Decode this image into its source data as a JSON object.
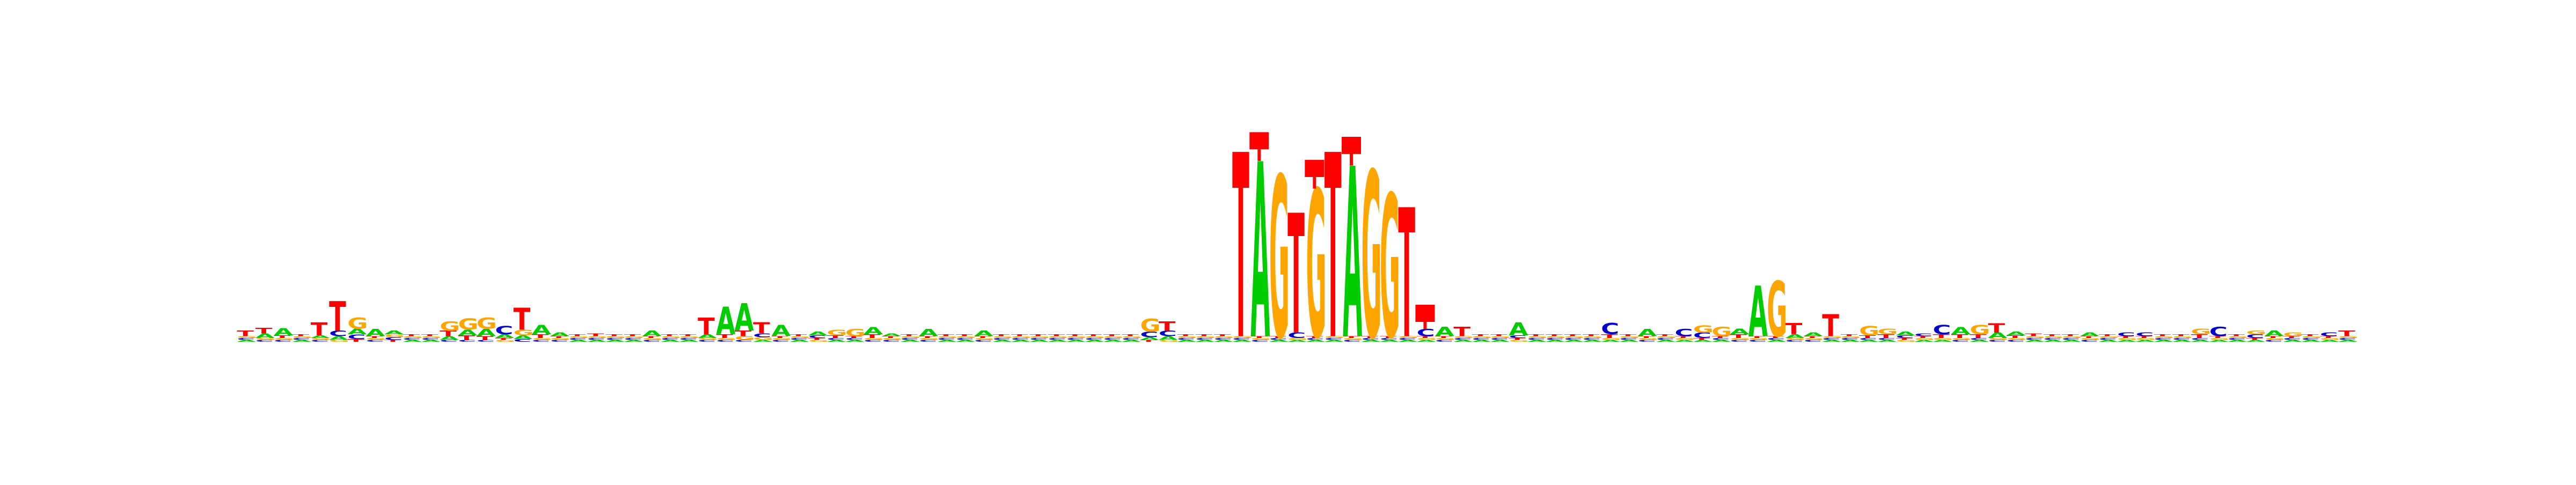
{
  "chart_data": {
    "type": "sequence-logo",
    "alphabet": [
      "A",
      "C",
      "G",
      "T"
    ],
    "colors": {
      "A": "#00cc00",
      "C": "#0000cc",
      "G": "#ffa500",
      "T": "#ff0000"
    },
    "y_range_bits": [
      0,
      2.0
    ],
    "error_bar_color": "#ff0000",
    "positions": [
      {
        "A": 0.02,
        "C": 0.02,
        "G": 0.02,
        "T": 0.06
      },
      {
        "A": 0.05,
        "C": 0.02,
        "G": 0.02,
        "T": 0.06
      },
      {
        "A": 0.08,
        "C": 0.02,
        "G": 0.02,
        "T": 0.03
      },
      {
        "A": 0.02,
        "C": 0.02,
        "G": 0.02,
        "T": 0.02
      },
      {
        "A": 0.03,
        "C": 0.02,
        "G": 0.02,
        "T": 0.14
      },
      {
        "A": 0.04,
        "C": 0.06,
        "G": 0.02,
        "T": 0.32
      },
      {
        "A": 0.06,
        "C": 0.05,
        "G": 0.12,
        "T": 0.03
      },
      {
        "A": 0.08,
        "C": 0.02,
        "G": 0.02,
        "T": 0.02
      },
      {
        "A": 0.04,
        "C": 0.03,
        "G": 0.03,
        "T": 0.02
      },
      {
        "A": 0.02,
        "C": 0.02,
        "G": 0.02,
        "T": 0.02
      },
      {
        "A": 0.02,
        "C": 0.02,
        "G": 0.02,
        "T": 0.02
      },
      {
        "A": 0.04,
        "C": 0.02,
        "G": 0.1,
        "T": 0.06
      },
      {
        "A": 0.06,
        "C": 0.02,
        "G": 0.12,
        "T": 0.05
      },
      {
        "A": 0.08,
        "C": 0.02,
        "G": 0.12,
        "T": 0.04
      },
      {
        "A": 0.04,
        "C": 0.09,
        "G": 0.02,
        "T": 0.02
      },
      {
        "A": 0.04,
        "C": 0.03,
        "G": 0.06,
        "T": 0.24
      },
      {
        "A": 0.1,
        "C": 0.02,
        "G": 0.02,
        "T": 0.04
      },
      {
        "A": 0.04,
        "C": 0.02,
        "G": 0.02,
        "T": 0.02
      },
      {
        "A": 0.02,
        "C": 0.02,
        "G": 0.02,
        "T": 0.02
      },
      {
        "A": 0.02,
        "C": 0.02,
        "G": 0.02,
        "T": 0.03
      },
      {
        "A": 0.02,
        "C": 0.02,
        "G": 0.02,
        "T": 0.02
      },
      {
        "A": 0.02,
        "C": 0.02,
        "G": 0.02,
        "T": 0.02
      },
      {
        "A": 0.06,
        "C": 0.02,
        "G": 0.02,
        "T": 0.02
      },
      {
        "A": 0.02,
        "C": 0.02,
        "G": 0.02,
        "T": 0.02
      },
      {
        "A": 0.02,
        "C": 0.02,
        "G": 0.02,
        "T": 0.02
      },
      {
        "A": 0.04,
        "C": 0.02,
        "G": 0.02,
        "T": 0.18
      },
      {
        "A": 0.3,
        "C": 0.02,
        "G": 0.02,
        "T": 0.04
      },
      {
        "A": 0.3,
        "C": 0.02,
        "G": 0.04,
        "T": 0.06
      },
      {
        "A": 0.02,
        "C": 0.04,
        "G": 0.03,
        "T": 0.12
      },
      {
        "A": 0.12,
        "C": 0.02,
        "G": 0.02,
        "T": 0.02
      },
      {
        "A": 0.02,
        "C": 0.02,
        "G": 0.02,
        "T": 0.02
      },
      {
        "A": 0.04,
        "C": 0.03,
        "G": 0.02,
        "T": 0.02
      },
      {
        "A": 0.02,
        "C": 0.02,
        "G": 0.06,
        "T": 0.03
      },
      {
        "A": 0.02,
        "C": 0.02,
        "G": 0.08,
        "T": 0.02
      },
      {
        "A": 0.08,
        "C": 0.02,
        "G": 0.02,
        "T": 0.04
      },
      {
        "A": 0.03,
        "C": 0.02,
        "G": 0.02,
        "T": 0.02
      },
      {
        "A": 0.02,
        "C": 0.02,
        "G": 0.02,
        "T": 0.02
      },
      {
        "A": 0.08,
        "C": 0.02,
        "G": 0.02,
        "T": 0.02
      },
      {
        "A": 0.02,
        "C": 0.02,
        "G": 0.02,
        "T": 0.02
      },
      {
        "A": 0.02,
        "C": 0.02,
        "G": 0.02,
        "T": 0.02
      },
      {
        "A": 0.06,
        "C": 0.02,
        "G": 0.02,
        "T": 0.02
      },
      {
        "A": 0.02,
        "C": 0.02,
        "G": 0.02,
        "T": 0.02
      },
      {
        "A": 0.02,
        "C": 0.02,
        "G": 0.02,
        "T": 0.02
      },
      {
        "A": 0.02,
        "C": 0.02,
        "G": 0.02,
        "T": 0.02
      },
      {
        "A": 0.02,
        "C": 0.02,
        "G": 0.02,
        "T": 0.02
      },
      {
        "A": 0.02,
        "C": 0.02,
        "G": 0.02,
        "T": 0.02
      },
      {
        "A": 0.02,
        "C": 0.02,
        "G": 0.02,
        "T": 0.02
      },
      {
        "A": 0.02,
        "C": 0.02,
        "G": 0.02,
        "T": 0.02
      },
      {
        "A": 0.02,
        "C": 0.02,
        "G": 0.02,
        "T": 0.02
      },
      {
        "A": 0.03,
        "C": 0.06,
        "G": 0.14,
        "T": 0.02
      },
      {
        "A": 0.04,
        "C": 0.06,
        "G": 0.02,
        "T": 0.1
      },
      {
        "A": 0.02,
        "C": 0.02,
        "G": 0.02,
        "T": 0.02
      },
      {
        "A": 0.02,
        "C": 0.02,
        "G": 0.02,
        "T": 0.02
      },
      {
        "A": 0.02,
        "C": 0.02,
        "G": 0.02,
        "T": 0.02
      },
      {
        "A": 0.02,
        "C": 0.02,
        "G": 0.02,
        "T": 2.0
      },
      {
        "A": 1.9,
        "C": 0.02,
        "G": 0.02,
        "T": 0.02
      },
      {
        "A": 0.02,
        "C": 0.02,
        "G": 1.75,
        "T": 0.02
      },
      {
        "A": 0.02,
        "C": 0.06,
        "G": 0.02,
        "T": 1.3
      },
      {
        "A": 0.02,
        "C": 0.02,
        "G": 1.6,
        "T": 0.02
      },
      {
        "A": 0.02,
        "C": 0.02,
        "G": 0.02,
        "T": 2.0
      },
      {
        "A": 1.85,
        "C": 0.02,
        "G": 0.02,
        "T": 0.02
      },
      {
        "A": 0.02,
        "C": 0.02,
        "G": 1.8,
        "T": 0.02
      },
      {
        "A": 0.02,
        "C": 0.02,
        "G": 1.55,
        "T": 0.02
      },
      {
        "A": 0.02,
        "C": 0.02,
        "G": 0.02,
        "T": 1.4
      },
      {
        "A": 0.02,
        "C": 0.08,
        "G": 0.02,
        "T": 0.02
      },
      {
        "A": 0.1,
        "C": 0.02,
        "G": 0.02,
        "T": 0.02
      },
      {
        "A": 0.02,
        "C": 0.02,
        "G": 0.02,
        "T": 0.1
      },
      {
        "A": 0.02,
        "C": 0.02,
        "G": 0.02,
        "T": 0.02
      },
      {
        "A": 0.02,
        "C": 0.02,
        "G": 0.02,
        "T": 0.02
      },
      {
        "A": 0.14,
        "C": 0.03,
        "G": 0.02,
        "T": 0.02
      },
      {
        "A": 0.02,
        "C": 0.02,
        "G": 0.02,
        "T": 0.02
      },
      {
        "A": 0.02,
        "C": 0.02,
        "G": 0.02,
        "T": 0.02
      },
      {
        "A": 0.02,
        "C": 0.02,
        "G": 0.02,
        "T": 0.02
      },
      {
        "A": 0.02,
        "C": 0.02,
        "G": 0.02,
        "T": 0.02
      },
      {
        "A": 0.02,
        "C": 0.12,
        "G": 0.02,
        "T": 0.04
      },
      {
        "A": 0.02,
        "C": 0.02,
        "G": 0.02,
        "T": 0.02
      },
      {
        "A": 0.08,
        "C": 0.02,
        "G": 0.02,
        "T": 0.02
      },
      {
        "A": 0.02,
        "C": 0.02,
        "G": 0.02,
        "T": 0.02
      },
      {
        "A": 0.02,
        "C": 0.08,
        "G": 0.02,
        "T": 0.02
      },
      {
        "A": 0.02,
        "C": 0.06,
        "G": 0.08,
        "T": 0.02
      },
      {
        "A": 0.02,
        "C": 0.02,
        "G": 0.1,
        "T": 0.02
      },
      {
        "A": 0.06,
        "C": 0.02,
        "G": 0.02,
        "T": 0.04
      },
      {
        "A": 0.55,
        "C": 0.02,
        "G": 0.02,
        "T": 0.02
      },
      {
        "A": 0.02,
        "C": 0.02,
        "G": 0.6,
        "T": 0.02
      },
      {
        "A": 0.04,
        "C": 0.02,
        "G": 0.02,
        "T": 0.12
      },
      {
        "A": 0.04,
        "C": 0.02,
        "G": 0.02,
        "T": 0.02
      },
      {
        "A": 0.02,
        "C": 0.02,
        "G": 0.02,
        "T": 0.24
      },
      {
        "A": 0.02,
        "C": 0.02,
        "G": 0.02,
        "T": 0.02
      },
      {
        "A": 0.02,
        "C": 0.02,
        "G": 0.1,
        "T": 0.03
      },
      {
        "A": 0.02,
        "C": 0.02,
        "G": 0.06,
        "T": 0.04
      },
      {
        "A": 0.04,
        "C": 0.03,
        "G": 0.02,
        "T": 0.02
      },
      {
        "A": 0.02,
        "C": 0.03,
        "G": 0.02,
        "T": 0.02
      },
      {
        "A": 0.02,
        "C": 0.1,
        "G": 0.02,
        "T": 0.04
      },
      {
        "A": 0.08,
        "C": 0.02,
        "G": 0.02,
        "T": 0.04
      },
      {
        "A": 0.02,
        "C": 0.02,
        "G": 0.1,
        "T": 0.04
      },
      {
        "A": 0.06,
        "C": 0.02,
        "G": 0.02,
        "T": 0.1
      },
      {
        "A": 0.04,
        "C": 0.02,
        "G": 0.02,
        "T": 0.03
      },
      {
        "A": 0.02,
        "C": 0.02,
        "G": 0.02,
        "T": 0.03
      },
      {
        "A": 0.02,
        "C": 0.02,
        "G": 0.02,
        "T": 0.02
      },
      {
        "A": 0.02,
        "C": 0.02,
        "G": 0.02,
        "T": 0.02
      },
      {
        "A": 0.04,
        "C": 0.02,
        "G": 0.02,
        "T": 0.02
      },
      {
        "A": 0.02,
        "C": 0.02,
        "G": 0.02,
        "T": 0.02
      },
      {
        "A": 0.02,
        "C": 0.04,
        "G": 0.02,
        "T": 0.02
      },
      {
        "A": 0.02,
        "C": 0.04,
        "G": 0.02,
        "T": 0.02
      },
      {
        "A": 0.02,
        "C": 0.02,
        "G": 0.02,
        "T": 0.02
      },
      {
        "A": 0.02,
        "C": 0.02,
        "G": 0.02,
        "T": 0.02
      },
      {
        "A": 0.02,
        "C": 0.02,
        "G": 0.06,
        "T": 0.04
      },
      {
        "A": 0.02,
        "C": 0.1,
        "G": 0.02,
        "T": 0.02
      },
      {
        "A": 0.02,
        "C": 0.02,
        "G": 0.02,
        "T": 0.02
      },
      {
        "A": 0.02,
        "C": 0.04,
        "G": 0.04,
        "T": 0.02
      },
      {
        "A": 0.06,
        "C": 0.02,
        "G": 0.02,
        "T": 0.02
      },
      {
        "A": 0.02,
        "C": 0.02,
        "G": 0.04,
        "T": 0.02
      },
      {
        "A": 0.02,
        "C": 0.02,
        "G": 0.02,
        "T": 0.02
      },
      {
        "A": 0.02,
        "C": 0.04,
        "G": 0.02,
        "T": 0.02
      },
      {
        "A": 0.02,
        "C": 0.02,
        "G": 0.02,
        "T": 0.06
      }
    ],
    "error_bars": [
      {
        "position": 55,
        "value": 0.25
      },
      {
        "position": 58,
        "value": 0.25
      },
      {
        "position": 60,
        "value": 0.25
      },
      {
        "position": 64,
        "value": 0.15
      }
    ]
  }
}
